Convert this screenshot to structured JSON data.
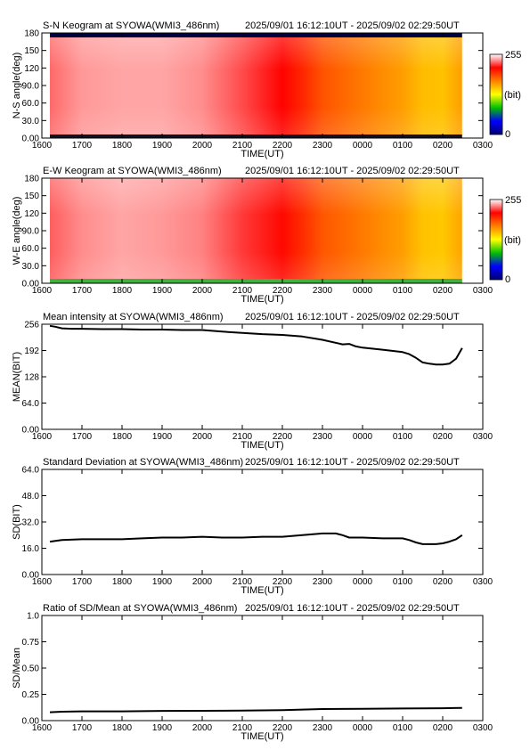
{
  "header": {
    "time_range": "2025/09/01 16:12:10UT - 2025/09/02 02:29:50UT"
  },
  "colorbar": {
    "max_label": "255",
    "unit_label": "(bit)",
    "min_label": "0",
    "stops": [
      "#000070",
      "#0000ff",
      "#00c000",
      "#ffff00",
      "#ff8000",
      "#ff0000",
      "#ffffff"
    ]
  },
  "chart_data": [
    {
      "type": "heatmap",
      "title": "S-N Keogram at SYOWA(WMI3_486nm)",
      "xlabel": "TIME(UT)",
      "ylabel": "N-S angle(deg)",
      "x_ticks": [
        "1600",
        "1700",
        "1800",
        "1900",
        "2000",
        "2100",
        "2200",
        "2300",
        "0000",
        "0100",
        "0200",
        "0300"
      ],
      "y_ticks": [
        "0.00",
        "30.0",
        "60.0",
        "90.0",
        "120",
        "150",
        "180"
      ],
      "xlim": [
        "1600",
        "0300"
      ],
      "ylim": [
        0,
        180
      ],
      "data_time_start": "16:12:10",
      "data_time_end": "02:29:50",
      "colorscale_range": [
        0,
        255
      ],
      "intensity_by_time": [
        {
          "time": "1612",
          "intensity": 230
        },
        {
          "time": "1700",
          "intensity": 238
        },
        {
          "time": "1800",
          "intensity": 240
        },
        {
          "time": "1900",
          "intensity": 240
        },
        {
          "time": "2000",
          "intensity": 236
        },
        {
          "time": "2100",
          "intensity": 225
        },
        {
          "time": "2200",
          "intensity": 212
        },
        {
          "time": "2230",
          "intensity": 200
        },
        {
          "time": "2300",
          "intensity": 185
        },
        {
          "time": "0000",
          "intensity": 172
        },
        {
          "time": "0100",
          "intensity": 160
        },
        {
          "time": "0130",
          "intensity": 150
        },
        {
          "time": "0200",
          "intensity": 148
        },
        {
          "time": "0229",
          "intensity": 160
        }
      ]
    },
    {
      "type": "heatmap",
      "title": "E-W Keogram at SYOWA(WMI3_486nm)",
      "xlabel": "TIME(UT)",
      "ylabel": "W-E angle(deg)",
      "x_ticks": [
        "1600",
        "1700",
        "1800",
        "1900",
        "2000",
        "2100",
        "2200",
        "2300",
        "0000",
        "0100",
        "0200",
        "0300"
      ],
      "y_ticks": [
        "0.00",
        "30.0",
        "60.0",
        "90.0",
        "120",
        "150",
        "180"
      ],
      "xlim": [
        "1600",
        "0300"
      ],
      "ylim": [
        0,
        180
      ],
      "data_time_start": "16:12:10",
      "data_time_end": "02:29:50",
      "colorscale_range": [
        0,
        255
      ],
      "intensity_by_time": [
        {
          "time": "1612",
          "intensity": 228
        },
        {
          "time": "1700",
          "intensity": 236
        },
        {
          "time": "1800",
          "intensity": 240
        },
        {
          "time": "1900",
          "intensity": 238
        },
        {
          "time": "2000",
          "intensity": 234
        },
        {
          "time": "2100",
          "intensity": 222
        },
        {
          "time": "2200",
          "intensity": 210
        },
        {
          "time": "2230",
          "intensity": 198
        },
        {
          "time": "2300",
          "intensity": 184
        },
        {
          "time": "0000",
          "intensity": 172
        },
        {
          "time": "0100",
          "intensity": 160
        },
        {
          "time": "0130",
          "intensity": 148
        },
        {
          "time": "0200",
          "intensity": 146
        },
        {
          "time": "0229",
          "intensity": 158
        }
      ]
    },
    {
      "type": "line",
      "title": "Mean intensity at SYOWA(WMI3_486nm)",
      "xlabel": "TIME(UT)",
      "ylabel": "MEAN(BIT)",
      "x_ticks": [
        "1600",
        "1700",
        "1800",
        "1900",
        "2000",
        "2100",
        "2200",
        "2300",
        "0000",
        "0100",
        "0200",
        "0300"
      ],
      "y_ticks": [
        "0.00",
        "64.0",
        "128",
        "192",
        "256"
      ],
      "xlim": [
        "1600",
        "0300"
      ],
      "ylim": [
        0,
        256
      ],
      "series": [
        {
          "x": [
            "1612",
            "1620",
            "1630",
            "1645",
            "1700",
            "1730",
            "1800",
            "1830",
            "1900",
            "1930",
            "2000",
            "2030",
            "2100",
            "2130",
            "2200",
            "2230",
            "2300",
            "2330",
            "2340",
            "2350",
            "0000",
            "0030",
            "0100",
            "0110",
            "0120",
            "0130",
            "0140",
            "0150",
            "0200",
            "0210",
            "0220",
            "0229"
          ],
          "values": [
            252,
            250,
            246,
            245,
            245,
            244,
            244,
            243,
            243,
            242,
            242,
            238,
            235,
            232,
            230,
            226,
            218,
            207,
            208,
            202,
            199,
            194,
            188,
            183,
            174,
            163,
            160,
            158,
            158,
            160,
            172,
            198
          ]
        }
      ]
    },
    {
      "type": "line",
      "title": "Standard Deviation at SYOWA(WMI3_486nm)",
      "xlabel": "TIME(UT)",
      "ylabel": "SD(BIT)",
      "x_ticks": [
        "1600",
        "1700",
        "1800",
        "1900",
        "2000",
        "2100",
        "2200",
        "2300",
        "0000",
        "0100",
        "0200",
        "0300"
      ],
      "y_ticks": [
        "0.00",
        "16.0",
        "32.0",
        "48.0",
        "64.0"
      ],
      "xlim": [
        "1600",
        "0300"
      ],
      "ylim": [
        0,
        64
      ],
      "series": [
        {
          "x": [
            "1612",
            "1630",
            "1700",
            "1730",
            "1800",
            "1830",
            "1900",
            "1930",
            "2000",
            "2030",
            "2100",
            "2130",
            "2200",
            "2230",
            "2300",
            "2320",
            "2330",
            "2340",
            "2400",
            "0030",
            "0100",
            "0110",
            "0120",
            "0130",
            "0140",
            "0150",
            "0200",
            "0210",
            "0220",
            "0229"
          ],
          "values": [
            20.0,
            21.0,
            21.5,
            21.5,
            21.5,
            22.0,
            22.5,
            22.5,
            23.0,
            22.5,
            22.5,
            23.0,
            23.0,
            24.0,
            25.0,
            25.0,
            24.0,
            22.5,
            22.5,
            22.0,
            22.0,
            21.0,
            19.5,
            18.5,
            18.5,
            18.5,
            19.0,
            20.0,
            21.5,
            24.0
          ]
        }
      ]
    },
    {
      "type": "line",
      "title": "Ratio of SD/Mean at SYOWA(WMI3_486nm)",
      "xlabel": "TIME(UT)",
      "ylabel": "SD/Mean",
      "x_ticks": [
        "1600",
        "1700",
        "1800",
        "1900",
        "2000",
        "2100",
        "2200",
        "2300",
        "0000",
        "0100",
        "0200",
        "0300"
      ],
      "y_ticks": [
        "0.00",
        "0.25",
        "0.50",
        "0.75",
        "1.0"
      ],
      "xlim": [
        "1600",
        "0300"
      ],
      "ylim": [
        0,
        1.0
      ],
      "series": [
        {
          "x": [
            "1612",
            "1630",
            "1700",
            "1800",
            "1900",
            "2000",
            "2100",
            "2200",
            "2300",
            "0000",
            "0100",
            "0130",
            "0200",
            "0229"
          ],
          "values": [
            0.08,
            0.085,
            0.088,
            0.088,
            0.092,
            0.093,
            0.095,
            0.1,
            0.11,
            0.112,
            0.115,
            0.117,
            0.118,
            0.121
          ]
        }
      ]
    }
  ]
}
